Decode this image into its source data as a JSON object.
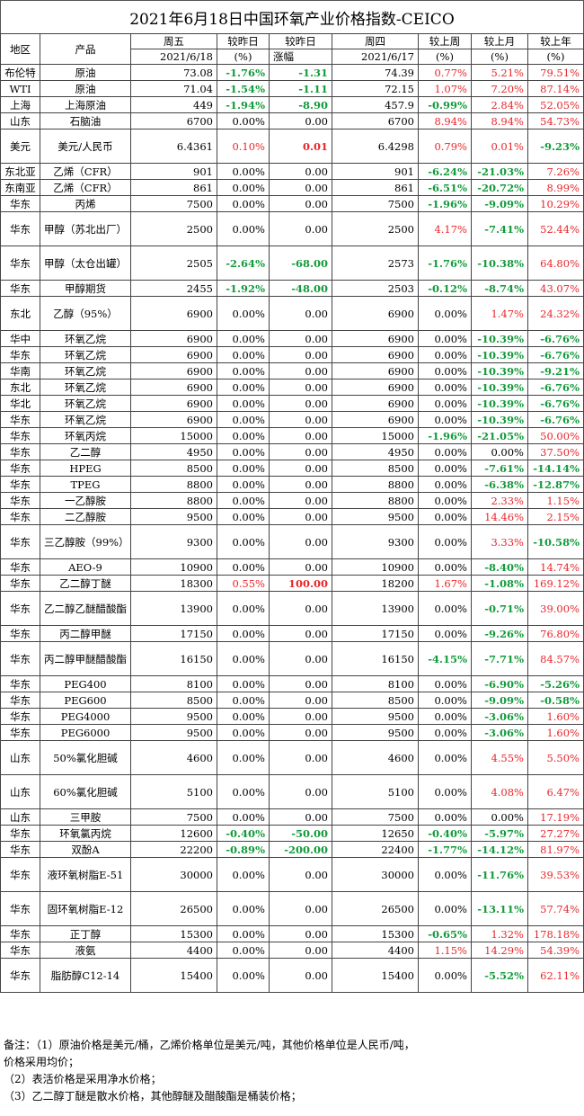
{
  "title": "2021年6月18日中国环氧产业价格指数-CEICO",
  "header": {
    "region": "地区",
    "product": "产品",
    "fri": "周五",
    "fri_date": "2021/6/18",
    "chg_day": "较昨日",
    "chg_day_unit": "(%)",
    "chg_day_amt": "较昨日",
    "chg_day_amt_sub": "涨幅",
    "thu": "周四",
    "thu_date": "2021/6/17",
    "chg_week": "较上周",
    "chg_week_unit": "(%)",
    "chg_month": "较上月",
    "chg_month_unit": "(%)",
    "chg_year": "较上年",
    "chg_year_unit": "(%)"
  },
  "rows": [
    {
      "region": "布伦特",
      "product": "原油",
      "fri": "73.08",
      "pct": "-1.76%",
      "amt": "-1.31",
      "thu": "74.39",
      "week": "0.77%",
      "month": "5.21%",
      "year": "79.51%",
      "h": 18
    },
    {
      "region": "WTI",
      "product": "原油",
      "fri": "71.04",
      "pct": "-1.54%",
      "amt": "-1.11",
      "thu": "72.15",
      "week": "1.07%",
      "month": "7.20%",
      "year": "87.14%",
      "h": 18
    },
    {
      "region": "上海",
      "product": "上海原油",
      "fri": "449",
      "pct": "-1.94%",
      "amt": "-8.90",
      "thu": "457.9",
      "week": "-0.99%",
      "month": "2.84%",
      "year": "52.05%",
      "h": 18
    },
    {
      "region": "山东",
      "product": "石脑油",
      "fri": "6700",
      "pct": "0.00%",
      "amt": "0.00",
      "thu": "6700",
      "week": "8.94%",
      "month": "8.94%",
      "year": "54.73%",
      "h": 18
    },
    {
      "region": "美元",
      "product": "美元/人民币",
      "fri": "6.4361",
      "pct": "0.10%",
      "amt": "0.01",
      "thu": "6.4298",
      "week": "0.79%",
      "month": "0.01%",
      "year": "-9.23%",
      "h": 38
    },
    {
      "region": "东北亚",
      "product": "乙烯（CFR）",
      "fri": "901",
      "pct": "0.00%",
      "amt": "0.00",
      "thu": "901",
      "week": "-6.24%",
      "month": "-21.03%",
      "year": "7.26%",
      "h": 18
    },
    {
      "region": "东南亚",
      "product": "乙烯（CFR）",
      "fri": "861",
      "pct": "0.00%",
      "amt": "0.00",
      "thu": "861",
      "week": "-6.51%",
      "month": "-20.72%",
      "year": "8.99%",
      "h": 18
    },
    {
      "region": "华东",
      "product": "丙烯",
      "fri": "7500",
      "pct": "0.00%",
      "amt": "0.00",
      "thu": "7500",
      "week": "-1.96%",
      "month": "-9.09%",
      "year": "10.29%",
      "h": 18
    },
    {
      "region": "华东",
      "product": "甲醇（苏北出厂）",
      "fri": "2500",
      "pct": "0.00%",
      "amt": "0.00",
      "thu": "2500",
      "week": "4.17%",
      "month": "-7.41%",
      "year": "52.44%",
      "h": 38
    },
    {
      "region": "华东",
      "product": "甲醇（太仓出罐）",
      "fri": "2505",
      "pct": "-2.64%",
      "amt": "-68.00",
      "thu": "2573",
      "week": "-1.76%",
      "month": "-10.38%",
      "year": "64.80%",
      "h": 38
    },
    {
      "region": "华东",
      "product": "甲醇期货",
      "fri": "2455",
      "pct": "-1.92%",
      "amt": "-48.00",
      "thu": "2503",
      "week": "-0.12%",
      "month": "-8.74%",
      "year": "43.07%",
      "h": 18
    },
    {
      "region": "东北",
      "product": "乙醇（95%）",
      "fri": "6900",
      "pct": "0.00%",
      "amt": "0.00",
      "thu": "6900",
      "week": "0.00%",
      "month": "1.47%",
      "year": "24.32%",
      "h": 38
    },
    {
      "region": "华中",
      "product": "环氧乙烷",
      "fri": "6900",
      "pct": "0.00%",
      "amt": "0.00",
      "thu": "6900",
      "week": "0.00%",
      "month": "-10.39%",
      "year": "-6.76%",
      "h": 18
    },
    {
      "region": "华东",
      "product": "环氧乙烷",
      "fri": "6900",
      "pct": "0.00%",
      "amt": "0.00",
      "thu": "6900",
      "week": "0.00%",
      "month": "-10.39%",
      "year": "-6.76%",
      "h": 18
    },
    {
      "region": "华南",
      "product": "环氧乙烷",
      "fri": "6900",
      "pct": "0.00%",
      "amt": "0.00",
      "thu": "6900",
      "week": "0.00%",
      "month": "-10.39%",
      "year": "-9.21%",
      "h": 18
    },
    {
      "region": "东北",
      "product": "环氧乙烷",
      "fri": "6900",
      "pct": "0.00%",
      "amt": "0.00",
      "thu": "6900",
      "week": "0.00%",
      "month": "-10.39%",
      "year": "-6.76%",
      "h": 18
    },
    {
      "region": "华北",
      "product": "环氧乙烷",
      "fri": "6900",
      "pct": "0.00%",
      "amt": "0.00",
      "thu": "6900",
      "week": "0.00%",
      "month": "-10.39%",
      "year": "-6.76%",
      "h": 18
    },
    {
      "region": "华东",
      "product": "环氧乙烷",
      "fri": "6900",
      "pct": "0.00%",
      "amt": "0.00",
      "thu": "6900",
      "week": "0.00%",
      "month": "-10.39%",
      "year": "-6.76%",
      "h": 18
    },
    {
      "region": "华东",
      "product": "环氧丙烷",
      "fri": "15000",
      "pct": "0.00%",
      "amt": "0.00",
      "thu": "15000",
      "week": "-1.96%",
      "month": "-21.05%",
      "year": "50.00%",
      "h": 18
    },
    {
      "region": "华东",
      "product": "乙二醇",
      "fri": "4950",
      "pct": "0.00%",
      "amt": "0.00",
      "thu": "4950",
      "week": "0.00%",
      "month": "0.00%",
      "year": "37.50%",
      "h": 18
    },
    {
      "region": "华东",
      "product": "HPEG",
      "fri": "8500",
      "pct": "0.00%",
      "amt": "0.00",
      "thu": "8500",
      "week": "0.00%",
      "month": "-7.61%",
      "year": "-14.14%",
      "h": 18
    },
    {
      "region": "华东",
      "product": "TPEG",
      "fri": "8800",
      "pct": "0.00%",
      "amt": "0.00",
      "thu": "8800",
      "week": "0.00%",
      "month": "-6.38%",
      "year": "-12.87%",
      "h": 18
    },
    {
      "region": "华东",
      "product": "一乙醇胺",
      "fri": "8800",
      "pct": "0.00%",
      "amt": "0.00",
      "thu": "8800",
      "week": "0.00%",
      "month": "2.33%",
      "year": "1.15%",
      "h": 18
    },
    {
      "region": "华东",
      "product": "二乙醇胺",
      "fri": "9500",
      "pct": "0.00%",
      "amt": "0.00",
      "thu": "9500",
      "week": "0.00%",
      "month": "14.46%",
      "year": "2.15%",
      "h": 18
    },
    {
      "region": "华东",
      "product": "三乙醇胺（99%）",
      "fri": "9300",
      "pct": "0.00%",
      "amt": "0.00",
      "thu": "9300",
      "week": "0.00%",
      "month": "3.33%",
      "year": "-10.58%",
      "h": 38
    },
    {
      "region": "华东",
      "product": "AEO-9",
      "fri": "10900",
      "pct": "0.00%",
      "amt": "0.00",
      "thu": "10900",
      "week": "0.00%",
      "month": "-8.40%",
      "year": "14.74%",
      "h": 18
    },
    {
      "region": "华东",
      "product": "乙二醇丁醚",
      "fri": "18300",
      "pct": "0.55%",
      "amt": "100.00",
      "thu": "18200",
      "week": "1.67%",
      "month": "-1.08%",
      "year": "169.12%",
      "h": 18
    },
    {
      "region": "华东",
      "product": "乙二醇乙醚醋酸酯",
      "fri": "13900",
      "pct": "0.00%",
      "amt": "0.00",
      "thu": "13900",
      "week": "0.00%",
      "month": "-0.71%",
      "year": "39.00%",
      "h": 38
    },
    {
      "region": "华东",
      "product": "丙二醇甲醚",
      "fri": "17150",
      "pct": "0.00%",
      "amt": "0.00",
      "thu": "17150",
      "week": "0.00%",
      "month": "-9.26%",
      "year": "76.80%",
      "h": 18
    },
    {
      "region": "华东",
      "product": "丙二醇甲醚醋酸酯",
      "fri": "16150",
      "pct": "0.00%",
      "amt": "0.00",
      "thu": "16150",
      "week": "-4.15%",
      "month": "-7.71%",
      "year": "84.57%",
      "h": 38
    },
    {
      "region": "华东",
      "product": "PEG400",
      "fri": "8100",
      "pct": "0.00%",
      "amt": "0.00",
      "thu": "8100",
      "week": "0.00%",
      "month": "-6.90%",
      "year": "-5.26%",
      "h": 18
    },
    {
      "region": "华东",
      "product": "PEG600",
      "fri": "8500",
      "pct": "0.00%",
      "amt": "0.00",
      "thu": "8500",
      "week": "0.00%",
      "month": "-9.09%",
      "year": "-0.58%",
      "h": 18
    },
    {
      "region": "华东",
      "product": "PEG4000",
      "fri": "9500",
      "pct": "0.00%",
      "amt": "0.00",
      "thu": "9500",
      "week": "0.00%",
      "month": "-3.06%",
      "year": "1.60%",
      "h": 18
    },
    {
      "region": "华东",
      "product": "PEG6000",
      "fri": "9500",
      "pct": "0.00%",
      "amt": "0.00",
      "thu": "9500",
      "week": "0.00%",
      "month": "-3.06%",
      "year": "1.60%",
      "h": 18
    },
    {
      "region": "山东",
      "product": "50%氯化胆碱",
      "fri": "4600",
      "pct": "0.00%",
      "amt": "0.00",
      "thu": "4600",
      "week": "0.00%",
      "month": "4.55%",
      "year": "5.50%",
      "h": 38
    },
    {
      "region": "山东",
      "product": "60%氯化胆碱",
      "fri": "5100",
      "pct": "0.00%",
      "amt": "0.00",
      "thu": "5100",
      "week": "0.00%",
      "month": "4.08%",
      "year": "6.47%",
      "h": 38
    },
    {
      "region": "山东",
      "product": "三甲胺",
      "fri": "7500",
      "pct": "0.00%",
      "amt": "0.00",
      "thu": "7500",
      "week": "0.00%",
      "month": "0.00%",
      "year": "17.19%",
      "h": 18
    },
    {
      "region": "华东",
      "product": "环氧氯丙烷",
      "fri": "12600",
      "pct": "-0.40%",
      "amt": "-50.00",
      "thu": "12650",
      "week": "-0.40%",
      "month": "-5.97%",
      "year": "27.27%",
      "h": 18
    },
    {
      "region": "华东",
      "product": "双酚A",
      "fri": "22200",
      "pct": "-0.89%",
      "amt": "-200.00",
      "thu": "22400",
      "week": "-1.77%",
      "month": "-14.12%",
      "year": "81.97%",
      "h": 18
    },
    {
      "region": "华东",
      "product": "液环氧树脂E-51",
      "fri": "30000",
      "pct": "0.00%",
      "amt": "0.00",
      "thu": "30000",
      "week": "0.00%",
      "month": "-11.76%",
      "year": "39.53%",
      "h": 38
    },
    {
      "region": "华东",
      "product": "固环氧树脂E-12",
      "fri": "26500",
      "pct": "0.00%",
      "amt": "0.00",
      "thu": "26500",
      "week": "0.00%",
      "month": "-13.11%",
      "year": "57.74%",
      "h": 38
    },
    {
      "region": "华东",
      "product": "正丁醇",
      "fri": "15300",
      "pct": "0.00%",
      "amt": "0.00",
      "thu": "15300",
      "week": "-0.65%",
      "month": "1.32%",
      "year": "178.18%",
      "h": 18
    },
    {
      "region": "华东",
      "product": "液氨",
      "fri": "4400",
      "pct": "0.00%",
      "amt": "0.00",
      "thu": "4400",
      "week": "1.15%",
      "month": "14.29%",
      "year": "54.39%",
      "h": 18
    },
    {
      "region": "华东",
      "product": "脂肪醇C12-14",
      "fri": "15400",
      "pct": "0.00%",
      "amt": "0.00",
      "thu": "15400",
      "week": "0.00%",
      "month": "-5.52%",
      "year": "62.11%",
      "h": 38
    }
  ],
  "notes": [
    "备注：（1）原油价格是美元/桶，乙烯价格单位是美元/吨，其他价格单位是人民币/吨，",
    "      价格采用均价；",
    "  （2）表活价格是采用净水价格；",
    "  （3）乙二醇丁醚是散水价格，其他醇醚及醋酸酯是桶装价格；"
  ],
  "colors": {
    "up": "#e8262b",
    "down": "#129b3a",
    "neutral": "#000000"
  }
}
